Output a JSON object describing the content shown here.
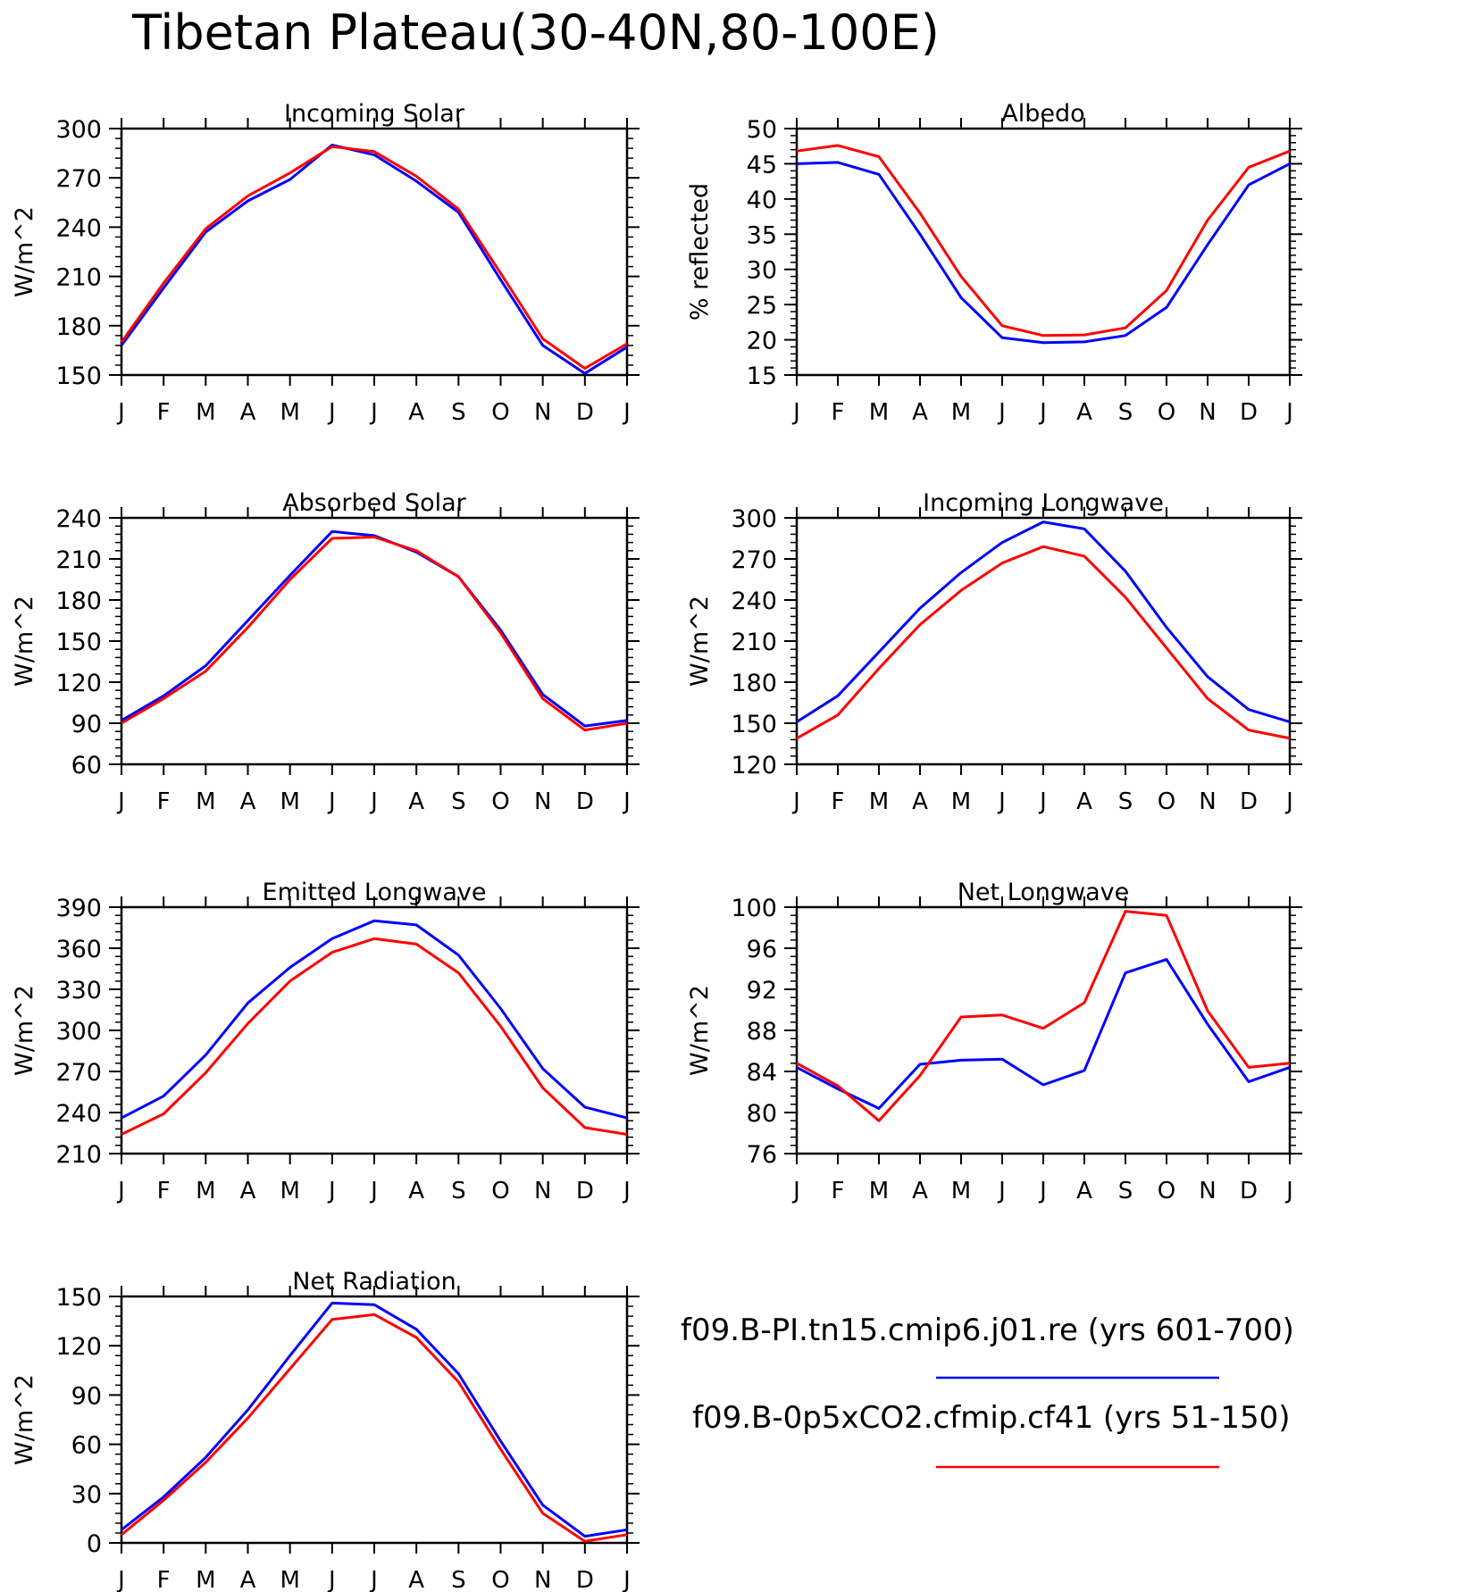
{
  "figure_title": "Tibetan Plateau(30-40N,80-100E)",
  "legend": [
    {
      "label": "f09.B-PI.tn15.cmip6.j01.re (yrs 601-700)",
      "color": "#0000ff"
    },
    {
      "label": "f09.B-0p5xCO2.cfmip.cf41 (yrs 51-150)",
      "color": "#ff0000"
    }
  ],
  "chart_data": [
    {
      "type": "line",
      "title": "Incoming Solar",
      "ylabel": "W/m^2",
      "categories": [
        "J",
        "F",
        "M",
        "A",
        "M",
        "J",
        "J",
        "A",
        "S",
        "O",
        "N",
        "D",
        "J"
      ],
      "ylim": [
        150,
        300
      ],
      "yticks": [
        150,
        180,
        210,
        240,
        270,
        300
      ],
      "series": [
        {
          "name": "f09.B-PI.tn15.cmip6.j01.re (yrs 601-700)",
          "color": "#0000ff",
          "values": [
            168,
            203,
            237,
            256,
            269,
            290,
            284,
            268,
            249,
            208,
            168,
            151,
            167
          ]
        },
        {
          "name": "f09.B-0p5xCO2.cfmip.cf41 (yrs 51-150)",
          "color": "#ff0000",
          "values": [
            170,
            206,
            239,
            259,
            273,
            289,
            286,
            271,
            251,
            212,
            172,
            154,
            169
          ]
        }
      ]
    },
    {
      "type": "line",
      "title": "Albedo",
      "ylabel": "% reflected",
      "categories": [
        "J",
        "F",
        "M",
        "A",
        "M",
        "J",
        "J",
        "A",
        "S",
        "O",
        "N",
        "D",
        "J"
      ],
      "ylim": [
        15,
        50
      ],
      "yticks": [
        15,
        20,
        25,
        30,
        35,
        40,
        45,
        50
      ],
      "series": [
        {
          "name": "f09.B-PI.tn15.cmip6.j01.re (yrs 601-700)",
          "color": "#0000ff",
          "values": [
            45,
            45.2,
            43.5,
            35,
            26,
            20.3,
            19.6,
            19.7,
            20.6,
            24.6,
            33.5,
            42,
            45
          ]
        },
        {
          "name": "f09.B-0p5xCO2.cfmip.cf41 (yrs 51-150)",
          "color": "#ff0000",
          "values": [
            46.8,
            47.6,
            46,
            38,
            29,
            22,
            20.6,
            20.7,
            21.7,
            27,
            37,
            44.5,
            46.8
          ]
        }
      ]
    },
    {
      "type": "line",
      "title": "Absorbed Solar",
      "ylabel": "W/m^2",
      "categories": [
        "J",
        "F",
        "M",
        "A",
        "M",
        "J",
        "J",
        "A",
        "S",
        "O",
        "N",
        "D",
        "J"
      ],
      "ylim": [
        60,
        240
      ],
      "yticks": [
        60,
        90,
        120,
        150,
        180,
        210,
        240
      ],
      "series": [
        {
          "name": "f09.B-PI.tn15.cmip6.j01.re (yrs 601-700)",
          "color": "#0000ff",
          "values": [
            92,
            110,
            132,
            165,
            198,
            230,
            227,
            215,
            197,
            158,
            111,
            88,
            92
          ]
        },
        {
          "name": "f09.B-0p5xCO2.cfmip.cf41 (yrs 51-150)",
          "color": "#ff0000",
          "values": [
            90,
            108,
            128,
            160,
            195,
            225,
            226,
            216,
            197,
            156,
            108,
            85,
            90
          ]
        }
      ]
    },
    {
      "type": "line",
      "title": "Incoming Longwave",
      "ylabel": "W/m^2",
      "categories": [
        "J",
        "F",
        "M",
        "A",
        "M",
        "J",
        "J",
        "A",
        "S",
        "O",
        "N",
        "D",
        "J"
      ],
      "ylim": [
        120,
        300
      ],
      "yticks": [
        120,
        150,
        180,
        210,
        240,
        270,
        300
      ],
      "series": [
        {
          "name": "f09.B-PI.tn15.cmip6.j01.re (yrs 601-700)",
          "color": "#0000ff",
          "values": [
            151,
            170,
            202,
            234,
            260,
            282,
            297,
            292,
            261,
            220,
            184,
            160,
            151
          ]
        },
        {
          "name": "f09.B-0p5xCO2.cfmip.cf41 (yrs 51-150)",
          "color": "#ff0000",
          "values": [
            139,
            156,
            190,
            222,
            247,
            267,
            279,
            272,
            242,
            205,
            168,
            145,
            139
          ]
        }
      ]
    },
    {
      "type": "line",
      "title": "Emitted Longwave",
      "ylabel": "W/m^2",
      "categories": [
        "J",
        "F",
        "M",
        "A",
        "M",
        "J",
        "J",
        "A",
        "S",
        "O",
        "N",
        "D",
        "J"
      ],
      "ylim": [
        210,
        390
      ],
      "yticks": [
        210,
        240,
        270,
        300,
        330,
        360,
        390
      ],
      "series": [
        {
          "name": "f09.B-PI.tn15.cmip6.j01.re (yrs 601-700)",
          "color": "#0000ff",
          "values": [
            236,
            252,
            282,
            320,
            346,
            367,
            380,
            377,
            355,
            316,
            272,
            244,
            236
          ]
        },
        {
          "name": "f09.B-0p5xCO2.cfmip.cf41 (yrs 51-150)",
          "color": "#ff0000",
          "values": [
            224,
            239,
            269,
            305,
            336,
            357,
            367,
            363,
            342,
            303,
            258,
            229,
            224
          ]
        }
      ]
    },
    {
      "type": "line",
      "title": "Net Longwave",
      "ylabel": "W/m^2",
      "categories": [
        "J",
        "F",
        "M",
        "A",
        "M",
        "J",
        "J",
        "A",
        "S",
        "O",
        "N",
        "D",
        "J"
      ],
      "ylim": [
        76,
        100
      ],
      "yticks": [
        76,
        80,
        84,
        88,
        92,
        96,
        100
      ],
      "series": [
        {
          "name": "f09.B-PI.tn15.cmip6.j01.re (yrs 601-700)",
          "color": "#0000ff",
          "values": [
            84.4,
            82.3,
            80.4,
            84.7,
            85.1,
            85.2,
            82.7,
            84.1,
            93.6,
            94.9,
            88.6,
            83,
            84.4
          ]
        },
        {
          "name": "f09.B-0p5xCO2.cfmip.cf41 (yrs 51-150)",
          "color": "#ff0000",
          "values": [
            84.8,
            82.6,
            79.2,
            83.6,
            89.3,
            89.5,
            88.2,
            90.7,
            99.6,
            99.2,
            89.9,
            84.4,
            84.8
          ]
        }
      ]
    },
    {
      "type": "line",
      "title": "Net Radiation",
      "ylabel": "W/m^2",
      "categories": [
        "J",
        "F",
        "M",
        "A",
        "M",
        "J",
        "J",
        "A",
        "S",
        "O",
        "N",
        "D",
        "J"
      ],
      "ylim": [
        0,
        150
      ],
      "yticks": [
        0,
        30,
        60,
        90,
        120,
        150
      ],
      "series": [
        {
          "name": "f09.B-PI.tn15.cmip6.j01.re (yrs 601-700)",
          "color": "#0000ff",
          "values": [
            8,
            28,
            52,
            81,
            114,
            146,
            145,
            130,
            103,
            62,
            23,
            4,
            8
          ]
        },
        {
          "name": "f09.B-0p5xCO2.cfmip.cf41 (yrs 51-150)",
          "color": "#ff0000",
          "values": [
            5,
            26,
            49,
            76,
            106,
            136,
            139,
            125,
            98,
            57,
            18,
            1,
            5
          ]
        }
      ]
    }
  ]
}
